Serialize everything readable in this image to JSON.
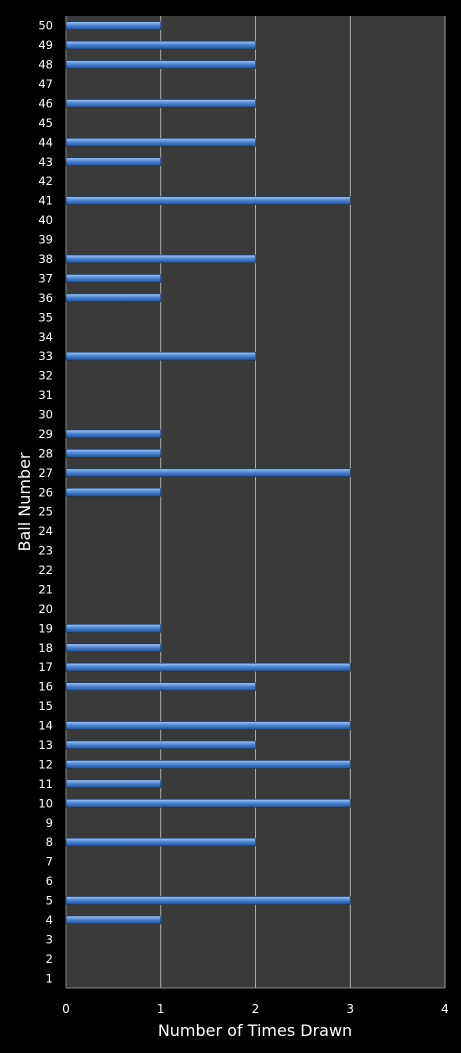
{
  "chart_data": {
    "type": "bar",
    "orientation": "horizontal",
    "xlabel": "Number of Times Drawn",
    "ylabel": "Ball Number",
    "xlim": [
      0,
      4
    ],
    "xticks": [
      "0",
      "1",
      "2",
      "3",
      "4"
    ],
    "grid": true,
    "categories": [
      "1",
      "2",
      "3",
      "4",
      "5",
      "6",
      "7",
      "8",
      "9",
      "10",
      "11",
      "12",
      "13",
      "14",
      "15",
      "16",
      "17",
      "18",
      "19",
      "20",
      "21",
      "22",
      "23",
      "24",
      "25",
      "26",
      "27",
      "28",
      "29",
      "30",
      "31",
      "32",
      "33",
      "34",
      "35",
      "36",
      "37",
      "38",
      "39",
      "40",
      "41",
      "42",
      "43",
      "44",
      "45",
      "46",
      "47",
      "48",
      "49",
      "50"
    ],
    "values": [
      0,
      0,
      0,
      1,
      3,
      0,
      0,
      2,
      0,
      3,
      1,
      3,
      2,
      3,
      0,
      2,
      3,
      1,
      1,
      0,
      0,
      0,
      0,
      0,
      0,
      1,
      3,
      1,
      1,
      0,
      0,
      0,
      2,
      0,
      0,
      1,
      1,
      2,
      0,
      0,
      3,
      0,
      1,
      2,
      0,
      2,
      0,
      2,
      2,
      1
    ],
    "colors": {
      "background": "#000000",
      "plot_area": "#3a3a3a",
      "bar_top": "#a9c8ef",
      "bar_mid": "#4f86d2",
      "bar_bottom": "#1d4f96",
      "grid": "#c8c8c8",
      "text": "#ffffff"
    }
  }
}
